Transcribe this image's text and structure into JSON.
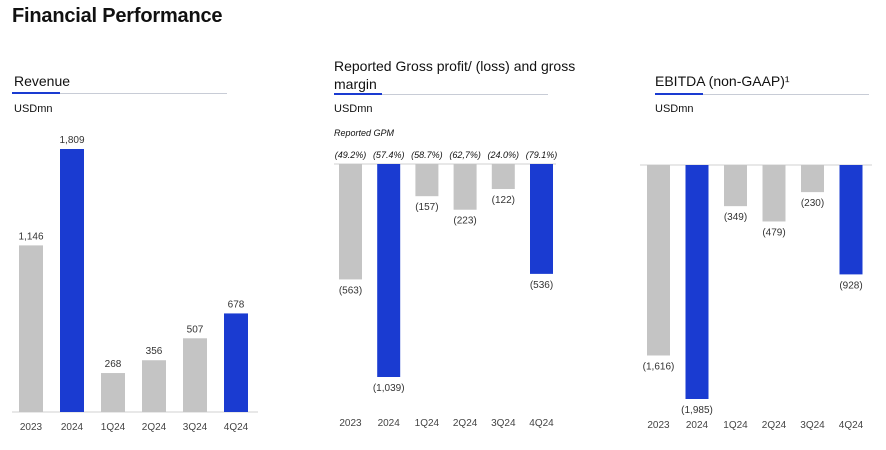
{
  "page": {
    "title": "Financial Performance"
  },
  "colors": {
    "highlight": "#1a3bd1",
    "neutral": "#c4c4c4",
    "accent_line": "#1a3bd1"
  },
  "chart_data": [
    {
      "type": "bar",
      "title": "Revenue",
      "ylabel": "USDmn",
      "categories": [
        "2023",
        "2024",
        "1Q24",
        "2Q24",
        "3Q24",
        "4Q24"
      ],
      "values": [
        1146,
        1809,
        268,
        356,
        507,
        678
      ],
      "labels": [
        "1,146",
        "1,809",
        "268",
        "356",
        "507",
        "678"
      ],
      "highlight": [
        false,
        true,
        false,
        false,
        false,
        true
      ],
      "ylim": [
        0,
        1809
      ]
    },
    {
      "type": "bar",
      "title": "Reported Gross profit/ (loss) and gross margin",
      "title_lines": [
        "Reported Gross profit/ (loss) and gross",
        "margin"
      ],
      "ylabel": "USDmn",
      "gpm_caption": "Reported GPM",
      "gpm_labels": [
        "(49.2%)",
        "(57.4%)",
        "(58.7%)",
        "(62,7%)",
        "(24.0%)",
        "(79.1%)"
      ],
      "categories": [
        "2023",
        "2024",
        "1Q24",
        "2Q24",
        "3Q24",
        "4Q24"
      ],
      "values": [
        -563,
        -1039,
        -157,
        -223,
        -122,
        -536
      ],
      "labels": [
        "(563)",
        "(1,039)",
        "(157)",
        "(223)",
        "(122)",
        "(536)"
      ],
      "highlight": [
        false,
        true,
        false,
        false,
        false,
        true
      ],
      "ylim": [
        -1039,
        0
      ]
    },
    {
      "type": "bar",
      "title": "EBITDA (non-GAAP)¹",
      "ylabel": "USDmn",
      "categories": [
        "2023",
        "2024",
        "1Q24",
        "2Q24",
        "3Q24",
        "4Q24"
      ],
      "values": [
        -1616,
        -1985,
        -349,
        -479,
        -230,
        -928
      ],
      "labels": [
        "(1,616)",
        "(1,985)",
        "(349)",
        "(479)",
        "(230)",
        "(928)"
      ],
      "highlight": [
        false,
        true,
        false,
        false,
        false,
        true
      ],
      "ylim": [
        -1985,
        0
      ]
    }
  ]
}
